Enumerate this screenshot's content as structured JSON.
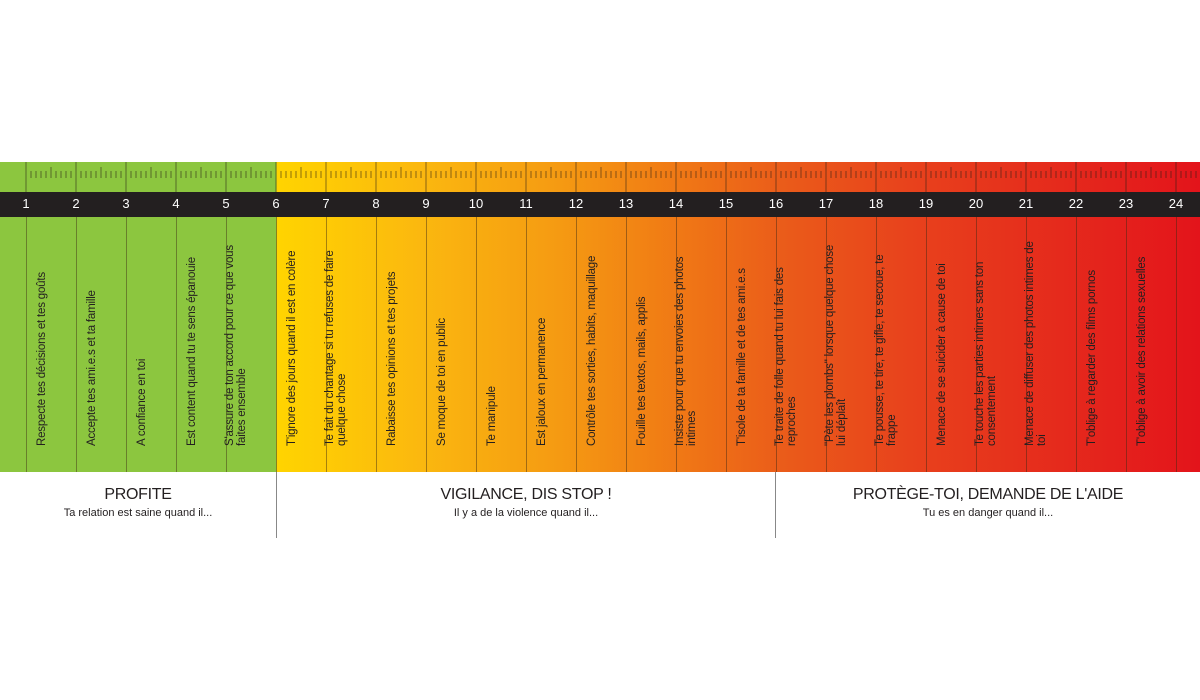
{
  "scale": {
    "numbers": [
      "1",
      "2",
      "3",
      "4",
      "5",
      "6",
      "7",
      "8",
      "9",
      "10",
      "11",
      "12",
      "13",
      "14",
      "15",
      "16",
      "17",
      "18",
      "19",
      "20",
      "21",
      "22",
      "23",
      "24"
    ]
  },
  "colors": {
    "green": "#8cc63f",
    "yellow": "#ffd400",
    "orange": "#f07815",
    "red": "#e3141b",
    "number_bar": "#231f20"
  },
  "cells": [
    "Respecte tes décisions et tes goûts",
    "Accepte tes ami.e.s et ta famille",
    "A confiance en toi",
    "Est content quand tu te sens épanouie",
    "S'assure de ton accord pour ce que vous faites ensemble",
    "T'ignore des jours quand il est en colère",
    "Te fait du chantage si tu refuses de faire quelque chose",
    "Rabaisse tes opinions et tes projets",
    "Se moque de toi en public",
    "Te manipule",
    "Est jaloux en permanence",
    "Contrôle tes sorties, habits, maquillage",
    "Fouille tes textos, mails, applis",
    "Insiste pour que tu envoies des photos intimes",
    "T'isole de ta famille et de tes ami.e.s",
    "Te traite de folle quand tu lui fais des reproches",
    "\"Pète les plombs\" lorsque quelque chose lui déplaît",
    "Te pousse, te tire, te gifle, te secoue, te frappe",
    "Menace de se suicider à cause de toi",
    "Te touche les parties intimes sans ton consentement",
    "Menace de diffuser des photos intimes de toi",
    "T'oblige à regarder des films pornos",
    "T'oblige à avoir des relations sexuelles"
  ],
  "legend": {
    "profite": {
      "title": "PROFITE",
      "subtitle": "Ta relation est saine quand il..."
    },
    "vigilance": {
      "title": "VIGILANCE, DIS STOP !",
      "subtitle": "Il y a de la violence quand il..."
    },
    "protege": {
      "title": "PROTÈGE-TOI, DEMANDE DE L'AIDE",
      "subtitle": "Tu es en danger quand il..."
    }
  }
}
